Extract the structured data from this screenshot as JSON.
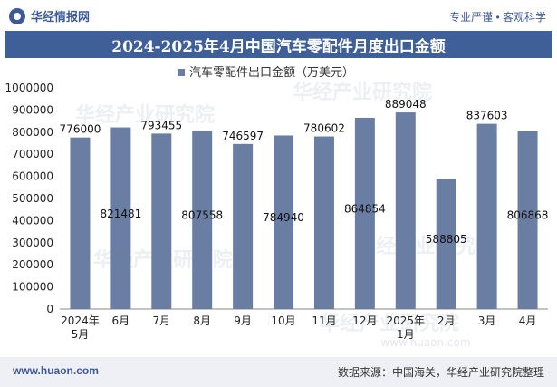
{
  "header": {
    "brand": "华经情报网",
    "tagline": "专业严谨 • 客观科学"
  },
  "title": "2024-2025年4月中国汽车零配件月度出口金额",
  "footer": {
    "url": "www.huaon.com",
    "source": "数据来源：中国海关，华经产业研究院整理"
  },
  "watermark": {
    "text": "华经产业研究院",
    "url": "www.huaon.com"
  },
  "colors": {
    "bar": "#6a7ea3",
    "title_bg": "#3f5f99",
    "brand": "#3d5a97"
  },
  "chart_data": {
    "type": "bar",
    "legend": "汽车零配件出口金额（万美元）",
    "legend_position": "top-center",
    "categories": [
      "2024年\n5月",
      "6月",
      "7月",
      "8月",
      "9月",
      "10月",
      "11月",
      "12月",
      "2025年\n1月",
      "2月",
      "3月",
      "4月"
    ],
    "series": [
      {
        "name": "汽车零配件出口金额（万美元）",
        "values": [
          776000,
          821481,
          793455,
          807558,
          746597,
          784940,
          780602,
          864854,
          889048,
          588805,
          837603,
          806868
        ]
      }
    ],
    "ylim": [
      0,
      1000000
    ],
    "yticks": [
      "0",
      "100000",
      "200000",
      "300000",
      "400000",
      "500000",
      "600000",
      "700000",
      "800000",
      "900000",
      "1000000"
    ],
    "label_positions": [
      "above",
      "inside",
      "above",
      "inside",
      "above",
      "inside",
      "above",
      "inside",
      "above",
      "inside",
      "above",
      "inside"
    ],
    "grid": false
  }
}
